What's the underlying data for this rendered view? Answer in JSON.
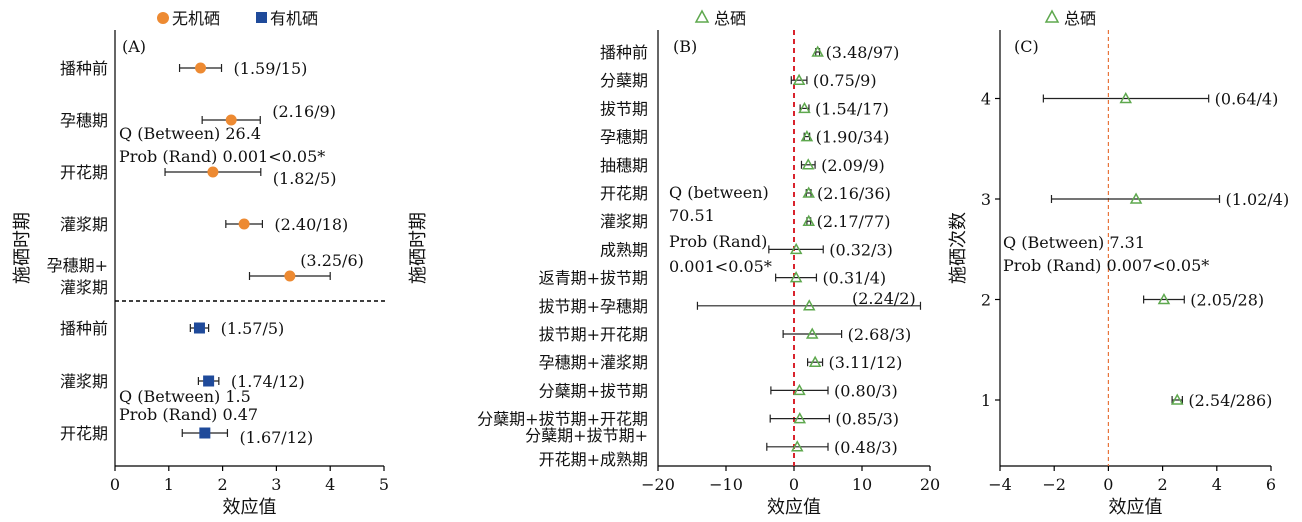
{
  "legend": {
    "a_items": [
      {
        "label": "无机硒",
        "color": "#ED8A32",
        "shape": "circle"
      },
      {
        "label": "有机硒",
        "color": "#1F4A9A",
        "shape": "square"
      }
    ],
    "b_item": {
      "label": "总硒",
      "color": "#5EA84E",
      "shape": "triangle"
    },
    "c_item": {
      "label": "总硒",
      "color": "#5EA84E",
      "shape": "triangle"
    }
  },
  "chart_data": [
    {
      "type": "scatter",
      "panel": "(A)",
      "xlabel": "效应值",
      "ylabel": "施硒时期",
      "xlim": [
        0,
        5
      ],
      "xticks": [
        0,
        1,
        2,
        3,
        4,
        5
      ],
      "series": [
        {
          "name": "无机硒",
          "points": [
            {
              "category": "播种前",
              "value": 1.59,
              "ci": [
                1.2,
                1.98
              ],
              "label": "(1.59/15)"
            },
            {
              "category": "孕穗期",
              "value": 2.16,
              "ci": [
                1.62,
                2.7
              ],
              "label": "(2.16/9)"
            },
            {
              "category": "开花期",
              "value": 1.82,
              "ci": [
                0.93,
                2.71
              ],
              "label": "(1.82/5)"
            },
            {
              "category": "灌浆期",
              "value": 2.4,
              "ci": [
                2.06,
                2.74
              ],
              "label": "(2.40/18)"
            },
            {
              "category": "孕穗期+\n灌浆期",
              "value": 3.25,
              "ci": [
                2.5,
                4.0
              ],
              "label": "(3.25/6)"
            }
          ]
        },
        {
          "name": "有机硒",
          "points": [
            {
              "category": "播种前",
              "value": 1.57,
              "ci": [
                1.4,
                1.74
              ],
              "label": "(1.57/5)"
            },
            {
              "category": "灌浆期",
              "value": 1.74,
              "ci": [
                1.55,
                1.93
              ],
              "label": "(1.74/12)"
            },
            {
              "category": "开花期",
              "value": 1.67,
              "ci": [
                1.25,
                2.09
              ],
              "label": "(1.67/12)"
            }
          ]
        }
      ],
      "stats": [
        {
          "q": "Q (Between) 26.4",
          "p": "Prob (Rand) 0.001<0.05*"
        },
        {
          "q": "Q (Between) 1.5",
          "p": "Prob (Rand) 0.47"
        }
      ]
    },
    {
      "type": "scatter",
      "panel": "(B)",
      "xlabel": "效应值",
      "xlim": [
        -20,
        20
      ],
      "xticks": [
        -20,
        -10,
        0,
        10,
        20
      ],
      "series": [
        {
          "name": "总硒",
          "points": [
            {
              "category": "播种前",
              "value": 3.48,
              "ci": [
                3.2,
                3.76
              ],
              "label": "(3.48/97)"
            },
            {
              "category": "分蘖期",
              "value": 0.75,
              "ci": [
                -0.4,
                1.9
              ],
              "label": "(0.75/9)"
            },
            {
              "category": "拔节期",
              "value": 1.54,
              "ci": [
                0.9,
                2.2
              ],
              "label": "(1.54/17)"
            },
            {
              "category": "孕穗期",
              "value": 1.9,
              "ci": [
                1.5,
                2.3
              ],
              "label": "(1.90/34)"
            },
            {
              "category": "抽穗期",
              "value": 2.09,
              "ci": [
                1.1,
                3.1
              ],
              "label": "(2.09/9)"
            },
            {
              "category": "开花期",
              "value": 2.16,
              "ci": [
                1.8,
                2.5
              ],
              "label": "(2.16/36)"
            },
            {
              "category": "灌浆期",
              "value": 2.17,
              "ci": [
                1.9,
                2.45
              ],
              "label": "(2.17/77)"
            },
            {
              "category": "成熟期",
              "value": 0.32,
              "ci": [
                -3.7,
                4.3
              ],
              "label": "(0.32/3)"
            },
            {
              "category": "返青期+拔节期",
              "value": 0.31,
              "ci": [
                -2.7,
                3.3
              ],
              "label": "(0.31/4)"
            },
            {
              "category": "拔节期+孕穗期",
              "value": 2.24,
              "ci": [
                -14.2,
                18.6
              ],
              "label": "(2.24/2)"
            },
            {
              "category": "拔节期+开花期",
              "value": 2.68,
              "ci": [
                -1.6,
                7.0
              ],
              "label": "(2.68/3)"
            },
            {
              "category": "孕穗期+灌浆期",
              "value": 3.11,
              "ci": [
                2.0,
                4.2
              ],
              "label": "(3.11/12)"
            },
            {
              "category": "分蘖期+拔节期",
              "value": 0.8,
              "ci": [
                -3.4,
                5.0
              ],
              "label": "(0.80/3)"
            },
            {
              "category": "分蘖期+拔节期+开花期",
              "value": 0.85,
              "ci": [
                -3.5,
                5.2
              ],
              "label": "(0.85/3)"
            },
            {
              "category": "分蘖期+拔节期+\n开花期+成熟期",
              "value": 0.48,
              "ci": [
                -4.0,
                5.0
              ],
              "label": "(0.48/3)"
            }
          ]
        }
      ],
      "stats": [
        {
          "q": "Q (between)",
          "q2": "70.51",
          "p": "Prob (Rand)",
          "p2": "0.001<0.05*"
        }
      ]
    },
    {
      "type": "scatter",
      "panel": "(C)",
      "xlabel": "效应值",
      "ylabel": "施硒次数",
      "xlim": [
        -4,
        6
      ],
      "xticks": [
        -4,
        -2,
        0,
        2,
        4,
        6
      ],
      "yticks": [
        1,
        2,
        3,
        4
      ],
      "series": [
        {
          "name": "总硒",
          "points": [
            {
              "category": "4",
              "value": 0.64,
              "ci": [
                -2.4,
                3.7
              ],
              "label": "(0.64/4)"
            },
            {
              "category": "3",
              "value": 1.02,
              "ci": [
                -2.1,
                4.1
              ],
              "label": "(1.02/4)"
            },
            {
              "category": "2",
              "value": 2.05,
              "ci": [
                1.3,
                2.8
              ],
              "label": "(2.05/28)"
            },
            {
              "category": "1",
              "value": 2.54,
              "ci": [
                2.35,
                2.73
              ],
              "label": "(2.54/286)"
            }
          ]
        }
      ],
      "stats": [
        {
          "q": "Q (Between) 7.31",
          "p": "Prob (Rand) 0.007<0.05*"
        }
      ]
    }
  ]
}
